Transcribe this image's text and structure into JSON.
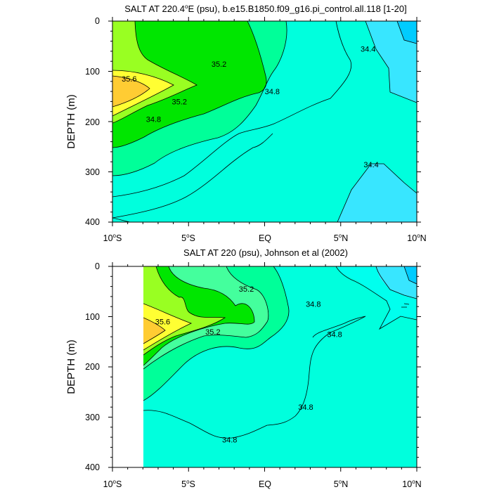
{
  "colors": {
    "c34_0": "#00e5ff",
    "c34_4": "#38e6ff",
    "c34_4b": "#00ccff",
    "c34_8": "#00ffdd",
    "c35_0": "#44ff9d",
    "c35_2": "#00e600",
    "c35_4": "#99ff22",
    "c35_6": "#ffff33",
    "c35_8": "#ffcc33",
    "missing": "#ffffff"
  },
  "chart_data": [
    {
      "type": "heatmap",
      "title": "SALT AT 220.4°E (psu), b.e15.B1850.f09_g16.pi_control.all.118 [1-20]",
      "title_main": "SALT AT 220.4",
      "title_degree": "o",
      "title_rest": "E (psu), b.e15.B1850.f09_g16.pi_control.all.118 [1-20]",
      "ylabel": "DEPTH (m)",
      "xlim": [
        -10,
        10
      ],
      "ylim": [
        400,
        0
      ],
      "y_ticks": [
        "0",
        "100",
        "200",
        "300",
        "400"
      ],
      "x_ticks": [
        {
          "value": -10,
          "num": "10",
          "deg": "o",
          "hemi": "S"
        },
        {
          "value": -5,
          "num": "5",
          "deg": "o",
          "hemi": "S"
        },
        {
          "value": 0,
          "num": "EQ",
          "deg": "",
          "hemi": ""
        },
        {
          "value": 5,
          "num": "5",
          "deg": "o",
          "hemi": "N"
        },
        {
          "value": 10,
          "num": "10",
          "deg": "o",
          "hemi": "N"
        }
      ],
      "contour_labels": [
        {
          "text": "35.6",
          "lat": -8.9,
          "depth": 115
        },
        {
          "text": "35.2",
          "lat": -3.0,
          "depth": 85
        },
        {
          "text": "35.2",
          "lat": -5.6,
          "depth": 160
        },
        {
          "text": "34.8",
          "lat": -7.3,
          "depth": 195
        },
        {
          "text": "34.8",
          "lat": 0.5,
          "depth": 140
        },
        {
          "text": "34.4",
          "lat": 6.8,
          "depth": 55
        },
        {
          "text": "34.4",
          "lat": 7.0,
          "depth": 285
        }
      ]
    },
    {
      "type": "heatmap",
      "title": "SALT AT 220 (psu), Johnson et al (2002)",
      "ylabel": "DEPTH (m)",
      "xlim": [
        -10,
        10
      ],
      "ylim": [
        400,
        0
      ],
      "y_ticks": [
        "0",
        "100",
        "200",
        "300",
        "400"
      ],
      "x_ticks": [
        {
          "value": -10,
          "num": "10",
          "deg": "o",
          "hemi": "S"
        },
        {
          "value": -5,
          "num": "5",
          "deg": "o",
          "hemi": "S"
        },
        {
          "value": 0,
          "num": "EQ",
          "deg": "",
          "hemi": ""
        },
        {
          "value": 5,
          "num": "5",
          "deg": "o",
          "hemi": "N"
        },
        {
          "value": 10,
          "num": "10",
          "deg": "o",
          "hemi": "N"
        }
      ],
      "contour_labels": [
        {
          "text": "35.2",
          "lat": -1.2,
          "depth": 45
        },
        {
          "text": "35.6",
          "lat": -6.7,
          "depth": 110
        },
        {
          "text": "35.2",
          "lat": -3.4,
          "depth": 130
        },
        {
          "text": "34.8",
          "lat": 3.2,
          "depth": 75
        },
        {
          "text": "34.8",
          "lat": 4.6,
          "depth": 135
        },
        {
          "text": "34.8",
          "lat": 2.7,
          "depth": 280
        },
        {
          "text": "34.8",
          "lat": -2.3,
          "depth": 345
        }
      ]
    }
  ]
}
